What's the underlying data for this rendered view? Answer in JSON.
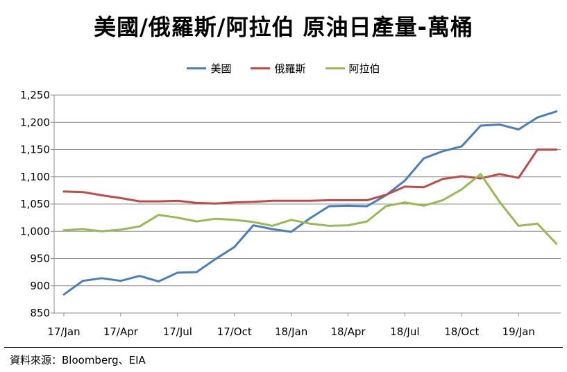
{
  "chart_data": {
    "type": "line",
    "title": "美國/俄羅斯/阿拉伯 原油日產量-萬桶",
    "xlabel": "",
    "ylabel": "",
    "ylim": [
      850,
      1250
    ],
    "yticks": [
      850,
      900,
      950,
      1000,
      1050,
      1100,
      1150,
      1200,
      1250
    ],
    "ytick_labels": [
      "850",
      "900",
      "950",
      "1,000",
      "1,050",
      "1,100",
      "1,150",
      "1,200",
      "1,250"
    ],
    "x": [
      "2017-01",
      "2017-02",
      "2017-03",
      "2017-04",
      "2017-05",
      "2017-06",
      "2017-07",
      "2017-08",
      "2017-09",
      "2017-10",
      "2017-11",
      "2017-12",
      "2018-01",
      "2018-02",
      "2018-03",
      "2018-04",
      "2018-05",
      "2018-06",
      "2018-07",
      "2018-08",
      "2018-09",
      "2018-10",
      "2018-11",
      "2018-12",
      "2019-01",
      "2019-02",
      "2019-03"
    ],
    "xtick_labels": [
      "17/Jan",
      "17/Apr",
      "17/Jul",
      "17/Oct",
      "18/Jan",
      "18/Apr",
      "18/Jul",
      "18/Oct",
      "19/Jan"
    ],
    "legend_position": "top",
    "grid": true,
    "series": [
      {
        "name": "美國",
        "color": "#4a7ebb",
        "values": [
          884,
          909,
          914,
          909,
          918,
          908,
          924,
          925,
          949,
          971,
          1011,
          1004,
          999,
          1024,
          1046,
          1047,
          1046,
          1066,
          1093,
          1134,
          1147,
          1156,
          1194,
          1196,
          1187,
          1209,
          1220
        ]
      },
      {
        "name": "俄羅斯",
        "color": "#be4b48",
        "values": [
          1073,
          1072,
          1066,
          1061,
          1055,
          1055,
          1056,
          1052,
          1051,
          1053,
          1054,
          1056,
          1056,
          1056,
          1057,
          1057,
          1057,
          1067,
          1082,
          1081,
          1096,
          1101,
          1097,
          1105,
          1098,
          1150,
          1150
        ]
      },
      {
        "name": "阿拉伯",
        "color": "#98b954",
        "values": [
          1002,
          1004,
          1000,
          1003,
          1009,
          1030,
          1025,
          1018,
          1023,
          1021,
          1017,
          1010,
          1021,
          1014,
          1010,
          1011,
          1018,
          1046,
          1053,
          1047,
          1057,
          1077,
          1105,
          1054,
          1010,
          1014,
          977
        ]
      }
    ]
  },
  "source": "資料來源：Bloomberg、EIA"
}
